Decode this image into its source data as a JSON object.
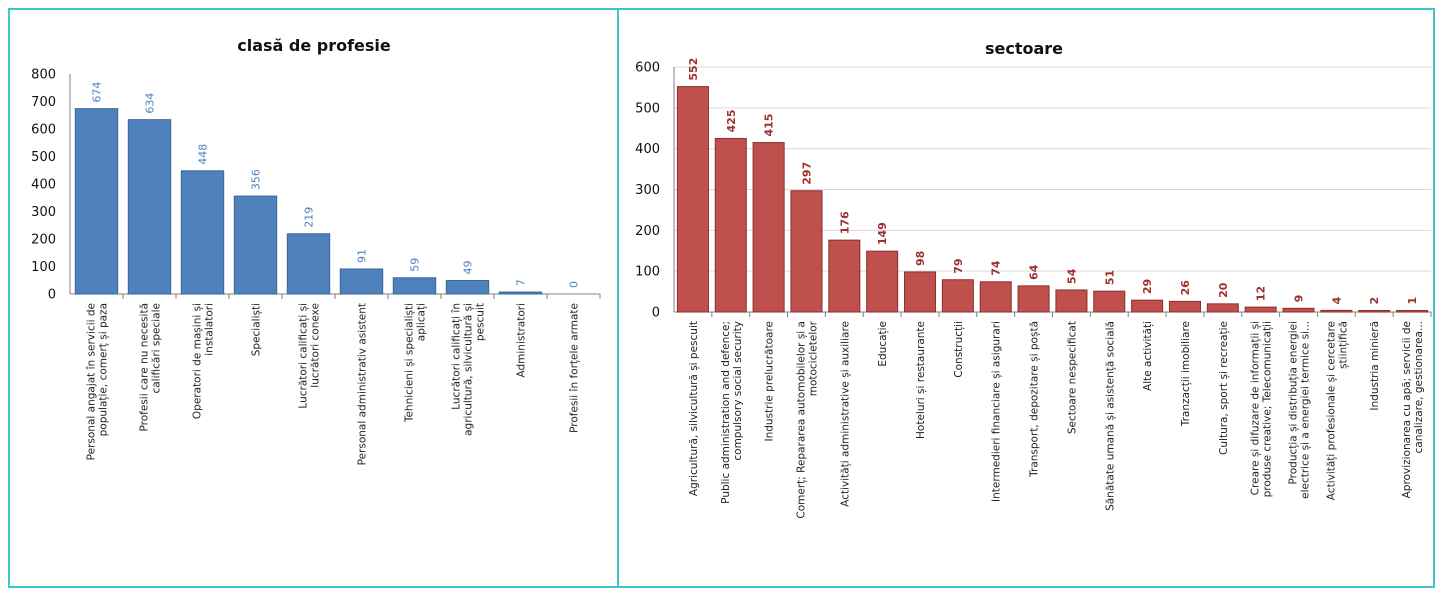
{
  "chart_data": [
    {
      "type": "bar",
      "title": "clasă de profesie",
      "xlabel": "",
      "ylabel": "",
      "ylim": [
        0,
        800
      ],
      "yticks": [
        0,
        100,
        200,
        300,
        400,
        500,
        600,
        700,
        800
      ],
      "grid": false,
      "legend": "none",
      "color": "#4f81bd",
      "label_color": "#4f81bd",
      "categories": [
        "Personal angajat în servicii de populație, comerț și paza",
        "Profesii care nu necesită calificări speciale",
        "Operatori de mașini și instalatori",
        "Specialiști",
        "Lucrători calificați și lucrători conexe",
        "Personal administrativ asistent",
        "Tehnicieni și specialiști aplicați",
        "Lucrători calificați în agricultură, silvicultură și pescuit",
        "Administratori",
        "Profesii în forțele armate"
      ],
      "values": [
        674,
        634,
        448,
        356,
        219,
        91,
        59,
        49,
        7,
        0
      ]
    },
    {
      "type": "bar",
      "title": "sectoare",
      "xlabel": "",
      "ylabel": "",
      "ylim": [
        0,
        600
      ],
      "yticks": [
        0,
        100,
        200,
        300,
        400,
        500,
        600
      ],
      "grid": true,
      "legend": "none",
      "color": "#c0504d",
      "label_color": "#a0302e",
      "categories": [
        "Agricultură, silvicultură și pescuit",
        "Public administration and defence; compulsory social security",
        "Industrie prelucrătoare",
        "Comerț; Repararea automobilelor și a motocicletelor",
        "Activități administrative și auxiliare",
        "Educație",
        "Hoteluri și restaurante",
        "Construcții",
        "Intermedieri financiare și asigurari",
        "Transport, depozitare și poștă",
        "Sectoare nespecificat",
        "Sănătate umană și asistență socială",
        "Alte activități",
        "Tranzacții imobiliare",
        "Cultura, sport și recreație",
        "Creare și difuzare de informații și produse creative; Telecomunicații",
        "Producția și distribuția energiei electrice și a energiei termice si...",
        "Activități profesionale și cercetare științifică",
        "Industria minieră",
        "Aprovizionarea cu apă; servicii de canalizare, gestionarea..."
      ],
      "values": [
        552,
        425,
        415,
        297,
        176,
        149,
        98,
        79,
        74,
        64,
        54,
        51,
        29,
        26,
        20,
        12,
        9,
        4,
        2,
        1
      ]
    }
  ]
}
